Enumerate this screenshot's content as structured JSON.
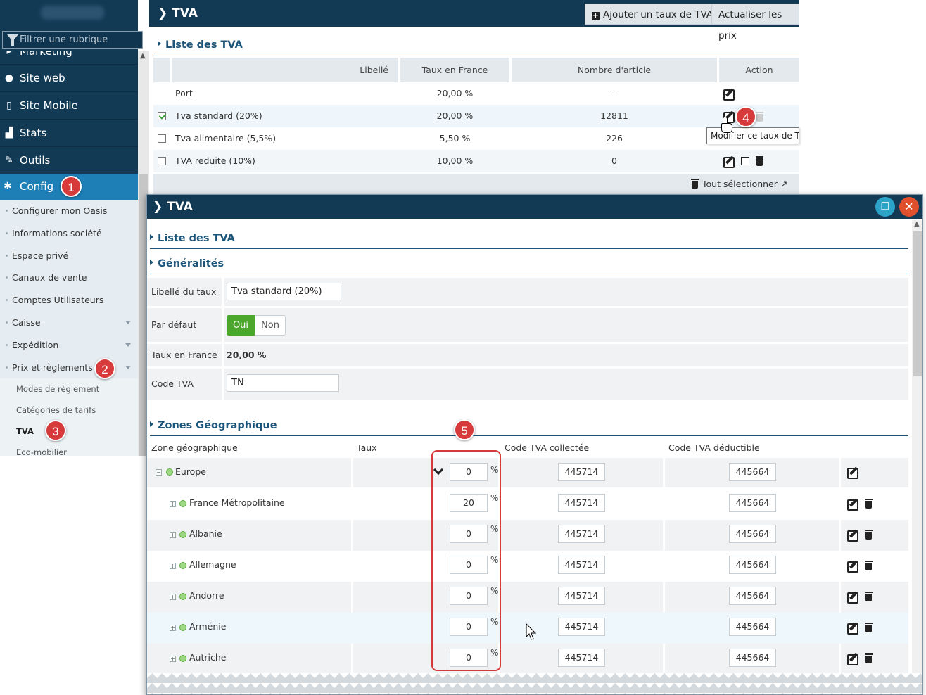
{
  "sidebar": {
    "filter_placeholder": "Filtrer une rubrique",
    "items": [
      {
        "label": "Marketing",
        "icon": "marketing-icon"
      },
      {
        "label": "Site web",
        "icon": "globe-icon"
      },
      {
        "label": "Site Mobile",
        "icon": "mobile-icon"
      },
      {
        "label": "Stats",
        "icon": "bar-chart-icon"
      },
      {
        "label": "Outils",
        "icon": "wrench-icon"
      }
    ],
    "config_label": "Config",
    "sub_items": [
      "Configurer mon Oasis",
      "Informations société",
      "Espace privé",
      "Canaux de vente",
      "Comptes Utilisateurs",
      "Caisse",
      "Expédition",
      "Prix et règlements"
    ],
    "sub_sub_items": [
      "Modes de règlement",
      "Catégories de tarifs",
      "TVA",
      "Eco-mobilier"
    ]
  },
  "badges": [
    "1",
    "2",
    "3",
    "4",
    "5"
  ],
  "bg_panel": {
    "title": "TVA",
    "add_button": "Ajouter un taux de TVA",
    "refresh_button": "Actualiser les prix",
    "section_title": "Liste des TVA",
    "columns": [
      "Libellé",
      "Taux en France",
      "Nombre d'article",
      "Action"
    ],
    "rows": [
      {
        "label": "Port",
        "rate": "20,00 %",
        "count": "-",
        "checked": null
      },
      {
        "label": "Tva standard (20%)",
        "rate": "20,00 %",
        "count": "12811",
        "checked": true
      },
      {
        "label": "Tva alimentaire (5,5%)",
        "rate": "5,50 %",
        "count": "226",
        "checked": false
      },
      {
        "label": "TVA reduite (10%)",
        "rate": "10,00 %",
        "count": "0",
        "checked": false
      }
    ],
    "tooltip": "Modifier ce taux de TVA",
    "select_all": "Tout sélectionner"
  },
  "modal": {
    "title": "TVA",
    "section_list": "Liste des TVA",
    "section_general": "Généralités",
    "label_name": "Libellé du taux",
    "value_name": "Tva standard (20%)",
    "label_default": "Par défaut",
    "toggle_yes": "Oui",
    "toggle_no": "Non",
    "label_rate": "Taux en France",
    "value_rate": "20,00 %",
    "label_code": "Code TVA",
    "value_code": "TN",
    "section_zones": "Zones Géographique",
    "zone_columns": [
      "Zone géographique",
      "Taux",
      "Code TVA collectée",
      "Code TVA déductible"
    ],
    "zones": [
      {
        "name": "Europe",
        "rate": "0",
        "collected": "445714",
        "deductible": "445664"
      },
      {
        "name": "France Métropolitaine",
        "rate": "20",
        "collected": "445714",
        "deductible": "445664"
      },
      {
        "name": "Albanie",
        "rate": "0",
        "collected": "445714",
        "deductible": "445664"
      },
      {
        "name": "Allemagne",
        "rate": "0",
        "collected": "445714",
        "deductible": "445664"
      },
      {
        "name": "Andorre",
        "rate": "0",
        "collected": "445714",
        "deductible": "445664"
      },
      {
        "name": "Arménie",
        "rate": "0",
        "collected": "445714",
        "deductible": "445664"
      },
      {
        "name": "Autriche",
        "rate": "0",
        "collected": "445714",
        "deductible": "445664"
      }
    ],
    "percent": "%"
  },
  "colors": {
    "header_navy": "#123a55",
    "config_blue": "#1e7fb6",
    "badge_red": "#d63a3a",
    "toggle_green": "#4aa72b",
    "copy_button": "#2ca4c9",
    "close_button": "#e0502d"
  }
}
